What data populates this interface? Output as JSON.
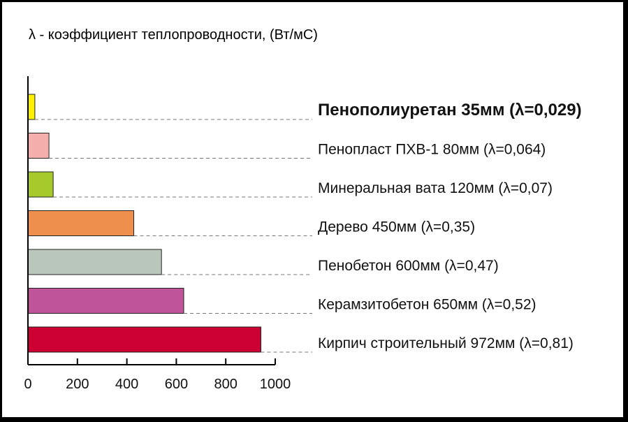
{
  "chart_data": {
    "type": "bar",
    "orientation": "horizontal",
    "title": "λ - коэффициент теплопроводности, (Вт/мС)",
    "xlabel": "",
    "ylabel": "",
    "xlim": [
      0,
      1000
    ],
    "xticks": [
      0,
      200,
      400,
      600,
      800,
      1000
    ],
    "xtick_labels": [
      "0",
      "200",
      "400",
      "600",
      "800",
      "1000"
    ],
    "grid": false,
    "legend": "none",
    "categories": [
      "Пенополиуретан 35мм (λ=0,029)",
      "Пенопласт ПХВ-1 80мм (λ=0,064)",
      "Минеральная вата 120мм (λ=0,07)",
      "Дерево 450мм (λ=0,35)",
      "Пенобетон 600мм (λ=0,47)",
      "Керамзитобетон 650мм (λ=0,52)",
      "Кирпич строительный 972мм (λ=0,81)"
    ],
    "values": [
      28,
      85,
      102,
      428,
      540,
      630,
      942
    ],
    "bar_colors": [
      "#FFF200",
      "#F4B0AC",
      "#A6CA2A",
      "#EE8F4E",
      "#B9C6BB",
      "#C05498",
      "#CC0033"
    ],
    "emphasized_category": "Пенополиуретан 35мм (λ=0,029)"
  }
}
